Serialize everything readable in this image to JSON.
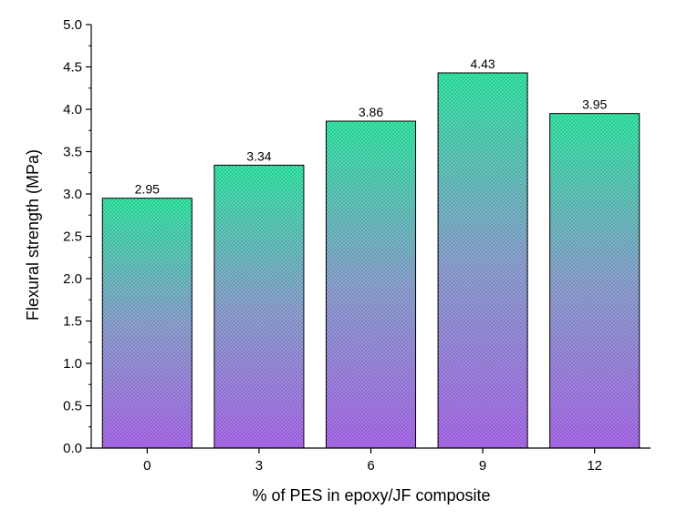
{
  "chart_data": {
    "type": "bar",
    "categories": [
      "0",
      "3",
      "6",
      "9",
      "12"
    ],
    "values": [
      2.95,
      3.34,
      3.86,
      4.43,
      3.95
    ],
    "data_labels": [
      "2.95",
      "3.34",
      "3.86",
      "4.43",
      "3.95"
    ],
    "xlabel": "% of PES in epoxy/JF composite",
    "ylabel": "Flexural strength (MPa)",
    "ylim": [
      0,
      5.0
    ],
    "yticks": [
      "0.0",
      "0.5",
      "1.0",
      "1.5",
      "2.0",
      "2.5",
      "3.0",
      "3.5",
      "4.0",
      "4.5",
      "5.0"
    ],
    "grid": false,
    "legend": "none",
    "colors": {
      "bar_top": "#33f0a8",
      "bar_mid": "#8fa8d6",
      "bar_bottom": "#b06cf2",
      "bar_pattern_dots": "#2a2a40",
      "bar_outline": "#000000"
    }
  }
}
